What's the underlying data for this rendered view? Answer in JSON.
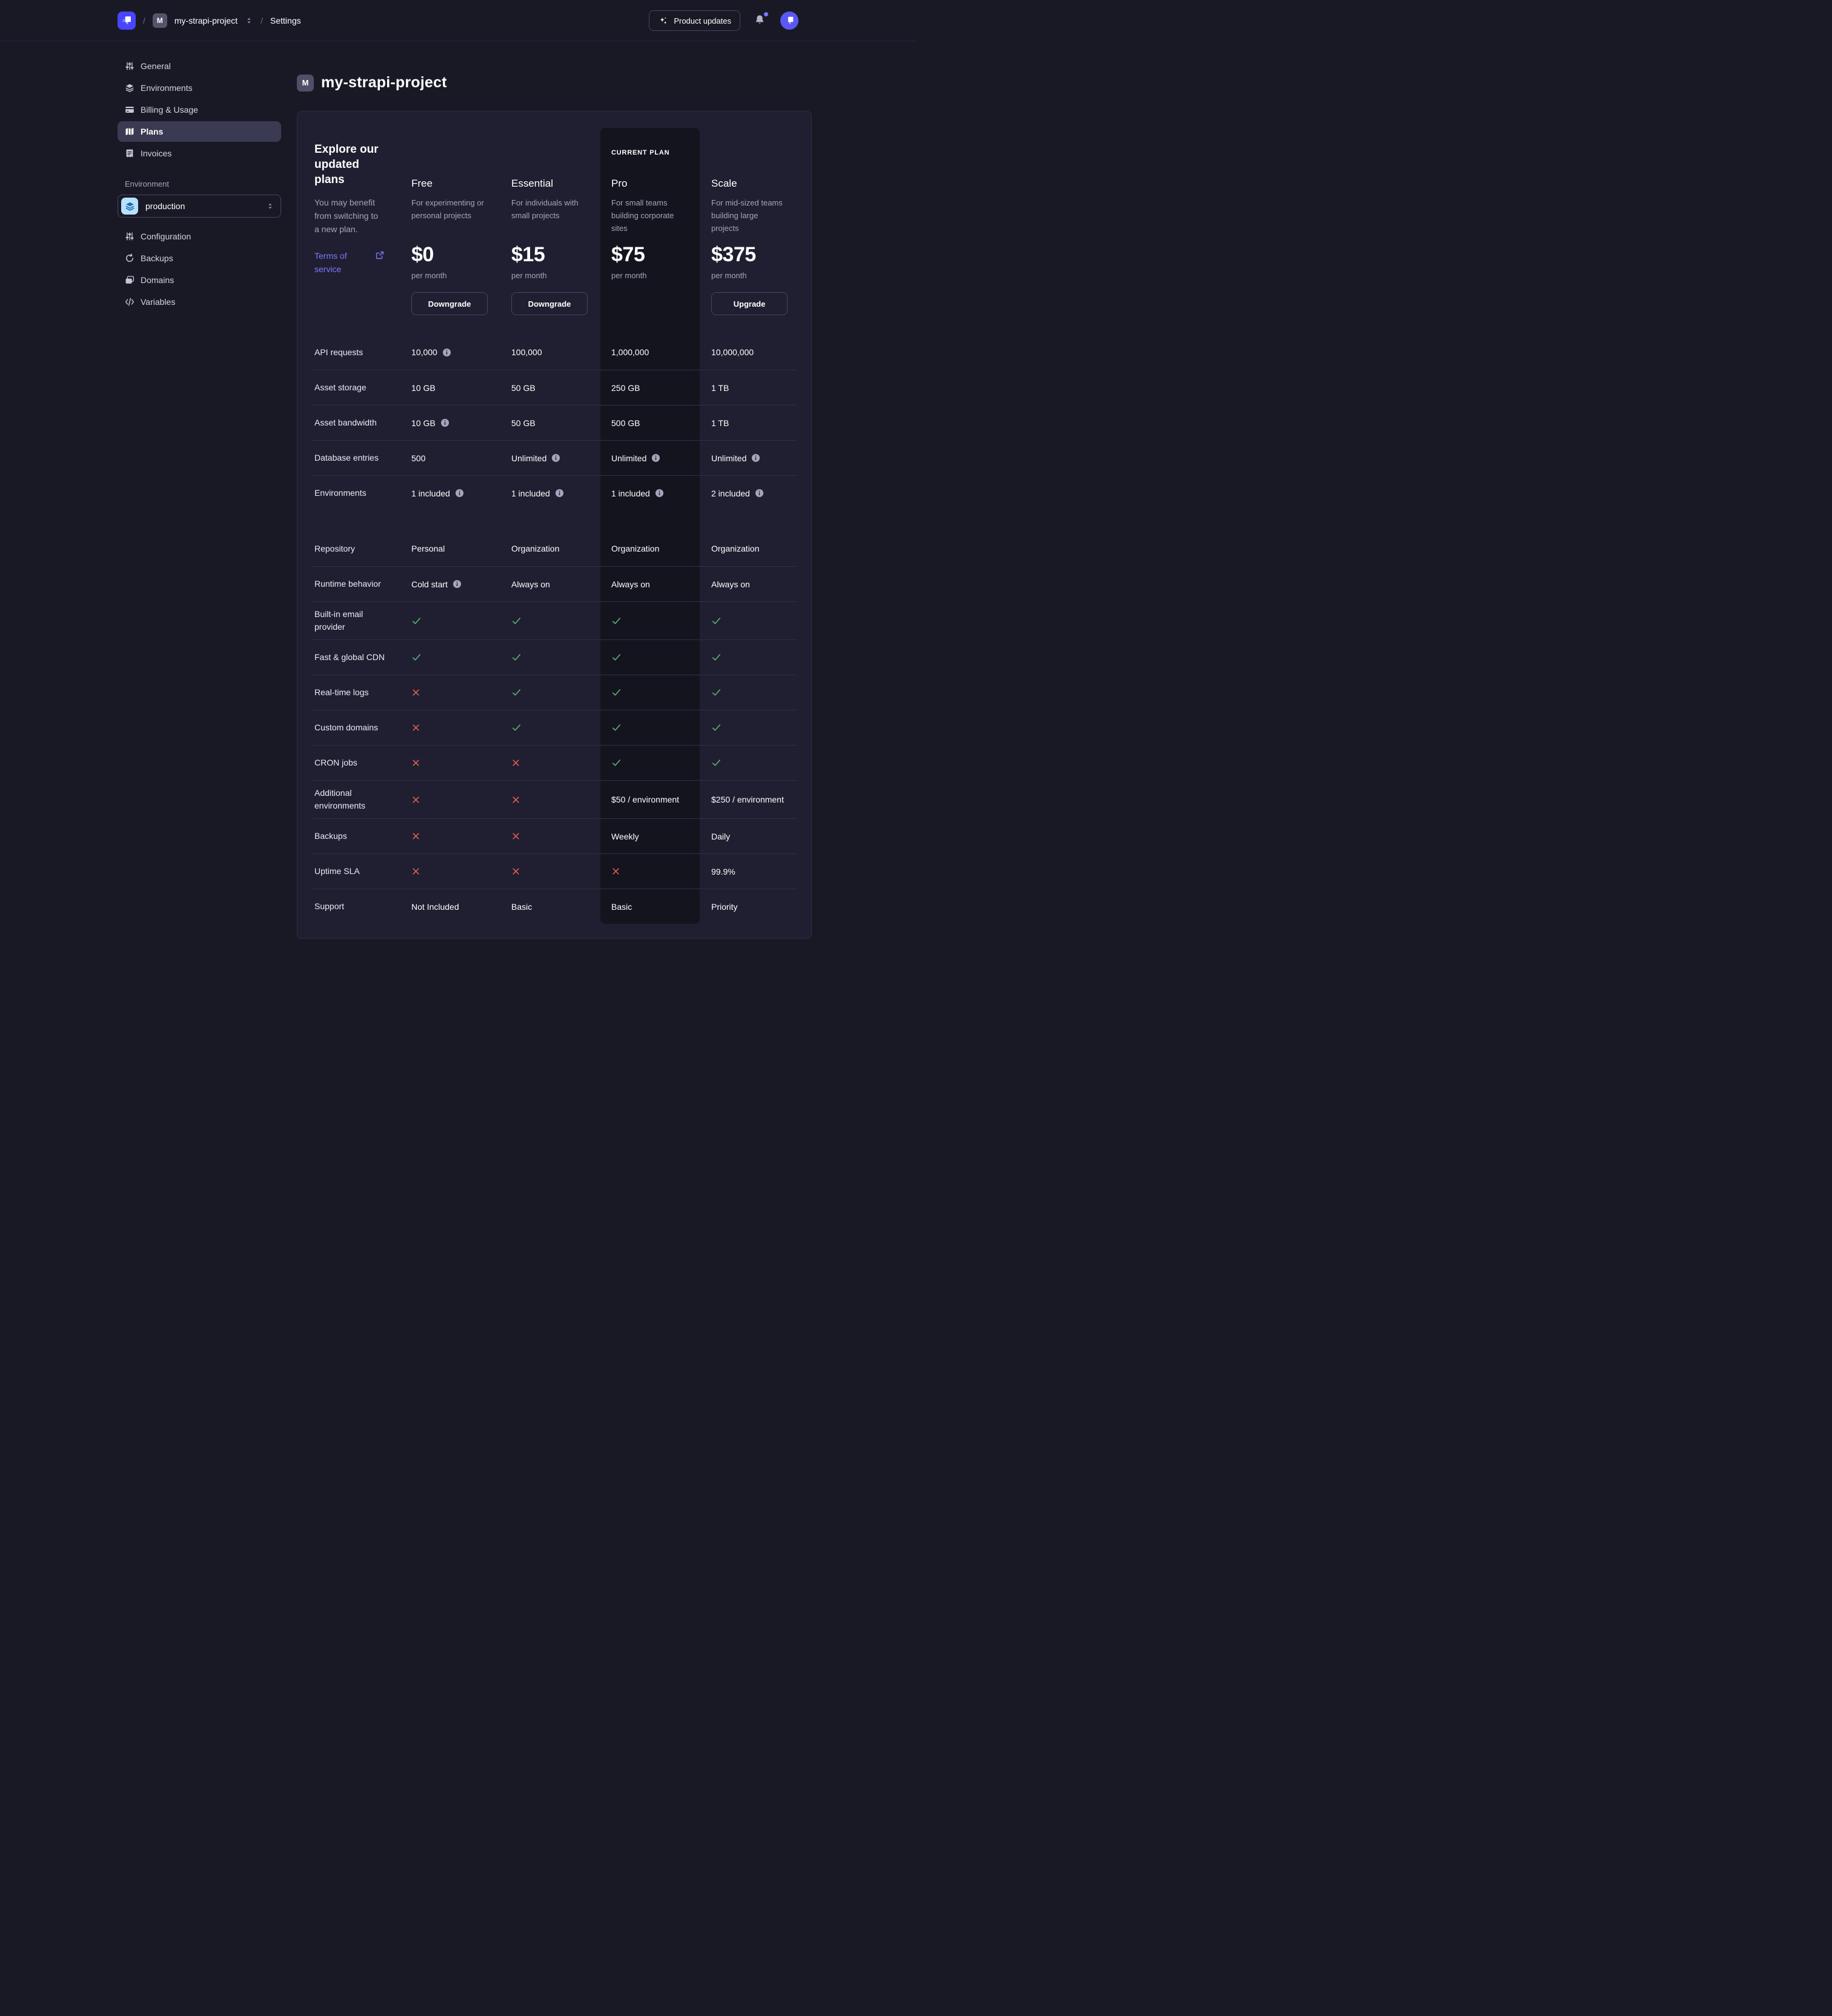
{
  "header": {
    "breadcrumb": {
      "separator": "/",
      "project_badge": "M",
      "project": "my-strapi-project",
      "settings_label": "Settings"
    },
    "product_updates_label": "Product updates",
    "bell_has_notification": true
  },
  "sidebar": {
    "nav": [
      {
        "icon": "sliders-icon",
        "label": "General",
        "active": false
      },
      {
        "icon": "layers-icon",
        "label": "Environments",
        "active": false
      },
      {
        "icon": "credit-card-icon",
        "label": "Billing & Usage",
        "active": false
      },
      {
        "icon": "map-icon",
        "label": "Plans",
        "active": true
      },
      {
        "icon": "invoice-icon",
        "label": "Invoices",
        "active": false
      }
    ],
    "environment_label": "Environment",
    "environment_select": {
      "value": "production",
      "icon": "layers-icon"
    },
    "env_nav": [
      {
        "icon": "sliders-icon",
        "label": "Configuration",
        "active": false
      },
      {
        "icon": "refresh-icon",
        "label": "Backups",
        "active": false
      },
      {
        "icon": "folders-icon",
        "label": "Domains",
        "active": false
      },
      {
        "icon": "code-icon",
        "label": "Variables",
        "active": false
      }
    ]
  },
  "main": {
    "title_badge": "M",
    "title": "my-strapi-project",
    "intro": {
      "heading": "Explore our updated plans",
      "subtext": "You may benefit from switching to a new plan.",
      "link_label": "Terms of service",
      "link_icon": "external-link-icon"
    },
    "plans": [
      {
        "name": "Free",
        "desc": "For experimenting or personal projects",
        "price": "$0",
        "period": "per month",
        "button": "Downgrade",
        "current": false
      },
      {
        "name": "Essential",
        "desc": "For individuals with small projects",
        "price": "$15",
        "period": "per month",
        "button": "Downgrade",
        "current": false
      },
      {
        "name": "Pro",
        "desc": "For small teams building corporate sites",
        "price": "$75",
        "period": "per month",
        "button": null,
        "current": true,
        "current_label": "CURRENT PLAN"
      },
      {
        "name": "Scale",
        "desc": "For mid-sized teams building large projects",
        "price": "$375",
        "period": "per month",
        "button": "Upgrade",
        "current": false
      }
    ],
    "table": {
      "sections": [
        {
          "rows": [
            {
              "label": "API requests",
              "cells": [
                {
                  "text": "10,000",
                  "info": true
                },
                {
                  "text": "100,000"
                },
                {
                  "text": "1,000,000"
                },
                {
                  "text": "10,000,000"
                }
              ]
            },
            {
              "label": "Asset storage",
              "cells": [
                {
                  "text": "10 GB"
                },
                {
                  "text": "50 GB"
                },
                {
                  "text": "250 GB"
                },
                {
                  "text": "1 TB"
                }
              ]
            },
            {
              "label": "Asset bandwidth",
              "cells": [
                {
                  "text": "10 GB",
                  "info": true
                },
                {
                  "text": "50 GB"
                },
                {
                  "text": "500 GB"
                },
                {
                  "text": "1 TB"
                }
              ]
            },
            {
              "label": "Database entries",
              "cells": [
                {
                  "text": "500"
                },
                {
                  "text": "Unlimited",
                  "info": true
                },
                {
                  "text": "Unlimited",
                  "info": true
                },
                {
                  "text": "Unlimited",
                  "info": true
                }
              ]
            },
            {
              "label": "Environments",
              "cells": [
                {
                  "text": "1 included",
                  "info": true
                },
                {
                  "text": "1 included",
                  "info": true
                },
                {
                  "text": "1 included",
                  "info": true
                },
                {
                  "text": "2 included",
                  "info": true
                }
              ]
            }
          ]
        },
        {
          "rows": [
            {
              "label": "Repository",
              "cells": [
                {
                  "text": "Personal"
                },
                {
                  "text": "Organization"
                },
                {
                  "text": "Organization"
                },
                {
                  "text": "Organization"
                }
              ]
            },
            {
              "label": "Runtime behavior",
              "cells": [
                {
                  "text": "Cold start",
                  "info": true
                },
                {
                  "text": "Always on"
                },
                {
                  "text": "Always on"
                },
                {
                  "text": "Always on"
                }
              ]
            },
            {
              "label": "Built-in email provider",
              "cells": [
                {
                  "mark": "check"
                },
                {
                  "mark": "check"
                },
                {
                  "mark": "check"
                },
                {
                  "mark": "check"
                }
              ]
            },
            {
              "label": "Fast & global CDN",
              "cells": [
                {
                  "mark": "check"
                },
                {
                  "mark": "check"
                },
                {
                  "mark": "check"
                },
                {
                  "mark": "check"
                }
              ]
            },
            {
              "label": "Real-time logs",
              "cells": [
                {
                  "mark": "cross"
                },
                {
                  "mark": "check"
                },
                {
                  "mark": "check"
                },
                {
                  "mark": "check"
                }
              ]
            },
            {
              "label": "Custom domains",
              "cells": [
                {
                  "mark": "cross"
                },
                {
                  "mark": "check"
                },
                {
                  "mark": "check"
                },
                {
                  "mark": "check"
                }
              ]
            },
            {
              "label": "CRON jobs",
              "cells": [
                {
                  "mark": "cross"
                },
                {
                  "mark": "cross"
                },
                {
                  "mark": "check"
                },
                {
                  "mark": "check"
                }
              ]
            },
            {
              "label": "Additional environments",
              "cells": [
                {
                  "mark": "cross"
                },
                {
                  "mark": "cross"
                },
                {
                  "text": "$50 / environment"
                },
                {
                  "text": "$250 / environment"
                }
              ]
            },
            {
              "label": "Backups",
              "cells": [
                {
                  "mark": "cross"
                },
                {
                  "mark": "cross"
                },
                {
                  "text": "Weekly"
                },
                {
                  "text": "Daily"
                }
              ]
            },
            {
              "label": "Uptime SLA",
              "cells": [
                {
                  "mark": "cross"
                },
                {
                  "mark": "cross"
                },
                {
                  "mark": "cross"
                },
                {
                  "text": "99.9%"
                }
              ]
            },
            {
              "label": "Support",
              "cells": [
                {
                  "text": "Not Included"
                },
                {
                  "text": "Basic"
                },
                {
                  "text": "Basic"
                },
                {
                  "text": "Priority"
                }
              ]
            }
          ]
        }
      ]
    }
  },
  "colors": {
    "accent": "#4945ff",
    "link": "#7b79ff",
    "success": "#5cb176",
    "danger": "#ee5e52",
    "page_bg": "#191926",
    "card_bg": "#1f1f31",
    "current_plan_bg": "#14141f",
    "divider": "#2f2f47",
    "sidebar_active_bg": "#3a3a52",
    "text_muted": "#a5a5ba",
    "env_badge_bg": "#b8e1ff",
    "env_badge_glyph": "#1c6ca8",
    "notification_dot": "#7b79ff"
  }
}
